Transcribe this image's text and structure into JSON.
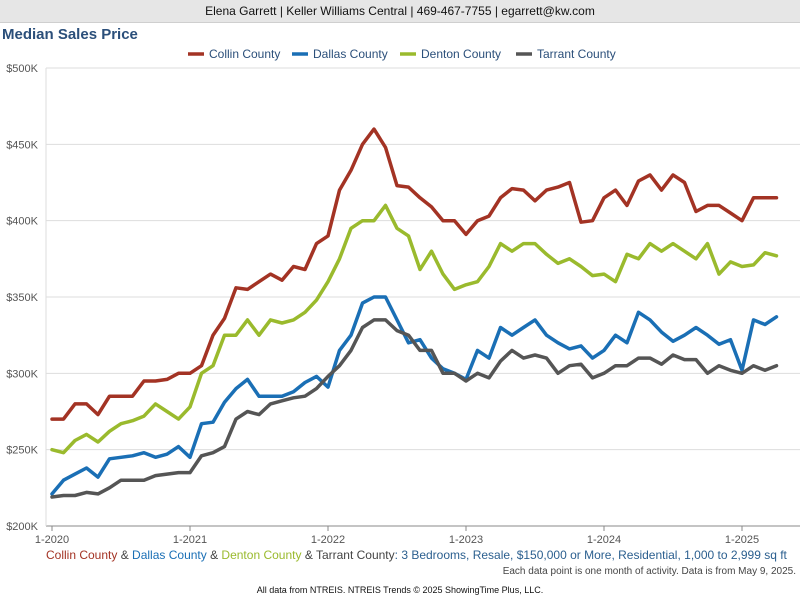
{
  "header": {
    "text": "Elena Garrett | Keller Williams Central | 469-467-7755 | egarrett@kw.com"
  },
  "caption": {
    "parts": [
      {
        "text": "Collin County",
        "color": "#a33324"
      },
      {
        "text": " & ",
        "color": "#444444"
      },
      {
        "text": "Dallas County",
        "color": "#1a6fb5"
      },
      {
        "text": " & ",
        "color": "#444444"
      },
      {
        "text": "Denton County",
        "color": "#9aba2d"
      },
      {
        "text": " & Tarrant County",
        "color": "#444444"
      },
      {
        "text": ": 3 Bedrooms, Resale, $150,000 or More, Residential, 1,000 to 2,999 sq ft",
        "color": "#2b5f8f"
      }
    ]
  },
  "note": "Each data point is one month of activity. Data is from May 9, 2025.",
  "footer": "All data from NTREIS. NTREIS Trends © 2025 ShowingTime Plus, LLC.",
  "chart_data": {
    "type": "line",
    "title": "Median Sales Price",
    "x_start": "2020-01",
    "x_tick_labels": [
      "1-2020",
      "1-2021",
      "1-2022",
      "1-2023",
      "1-2024",
      "1-2025"
    ],
    "y_tick_labels": [
      "$200K",
      "$250K",
      "$300K",
      "$350K",
      "$400K",
      "$450K",
      "$500K"
    ],
    "ylim": [
      200000,
      500000
    ],
    "grid": true,
    "legend_position": "top",
    "series": [
      {
        "name": "Collin County",
        "color": "#a33324",
        "values": [
          270000,
          270000,
          280000,
          280000,
          273000,
          285000,
          285000,
          285000,
          295000,
          295000,
          296000,
          300000,
          300000,
          305000,
          325000,
          336000,
          356000,
          355000,
          360000,
          365000,
          361000,
          370000,
          368000,
          385000,
          390000,
          420000,
          433000,
          450000,
          460000,
          448000,
          423000,
          422000,
          415000,
          409000,
          400000,
          400000,
          391000,
          400000,
          403000,
          415000,
          421000,
          420000,
          413000,
          420000,
          422000,
          425000,
          399000,
          400000,
          415000,
          420000,
          410000,
          426000,
          430000,
          420000,
          430000,
          425000,
          406000,
          410000,
          410000,
          405000,
          400000,
          415000,
          415000,
          415000
        ]
      },
      {
        "name": "Dallas County",
        "color": "#1a6fb5",
        "values": [
          221000,
          230000,
          234000,
          238000,
          232000,
          244000,
          245000,
          246000,
          248000,
          245000,
          247000,
          252000,
          245000,
          267000,
          268000,
          281000,
          290000,
          296000,
          285000,
          285000,
          285000,
          288000,
          294000,
          298000,
          291000,
          315000,
          325000,
          346000,
          350000,
          350000,
          335000,
          320000,
          322000,
          310000,
          303000,
          300000,
          296000,
          315000,
          310000,
          330000,
          325000,
          330000,
          335000,
          325000,
          320000,
          316000,
          318000,
          310000,
          315000,
          325000,
          320000,
          340000,
          335000,
          327000,
          321000,
          325000,
          330000,
          325000,
          319000,
          322000,
          302000,
          335000,
          332000,
          337000
        ]
      },
      {
        "name": "Denton County",
        "color": "#9aba2d",
        "values": [
          250000,
          248000,
          256000,
          260000,
          255000,
          262000,
          267000,
          269000,
          272000,
          280000,
          275000,
          270000,
          278000,
          300000,
          305000,
          325000,
          325000,
          335000,
          325000,
          335000,
          333000,
          335000,
          340000,
          348000,
          360000,
          375000,
          395000,
          400000,
          400000,
          410000,
          395000,
          390000,
          368000,
          380000,
          365000,
          355000,
          358000,
          360000,
          370000,
          385000,
          380000,
          385000,
          385000,
          378000,
          372000,
          375000,
          370000,
          364000,
          365000,
          360000,
          378000,
          375000,
          385000,
          380000,
          385000,
          380000,
          375000,
          385000,
          365000,
          373000,
          370000,
          371000,
          379000,
          377000
        ]
      },
      {
        "name": "Tarrant County",
        "color": "#555555",
        "values": [
          219000,
          220000,
          220000,
          222000,
          221000,
          225000,
          230000,
          230000,
          230000,
          233000,
          234000,
          235000,
          235000,
          246000,
          248000,
          252000,
          270000,
          275000,
          273000,
          280000,
          282000,
          284000,
          285000,
          290000,
          298000,
          305000,
          315000,
          330000,
          335000,
          335000,
          328000,
          325000,
          315000,
          315000,
          300000,
          300000,
          295000,
          300000,
          297000,
          308000,
          315000,
          310000,
          312000,
          310000,
          300000,
          305000,
          306000,
          297000,
          300000,
          305000,
          305000,
          310000,
          310000,
          306000,
          312000,
          309000,
          309000,
          300000,
          305000,
          302000,
          300000,
          305000,
          302000,
          305000
        ]
      }
    ]
  }
}
